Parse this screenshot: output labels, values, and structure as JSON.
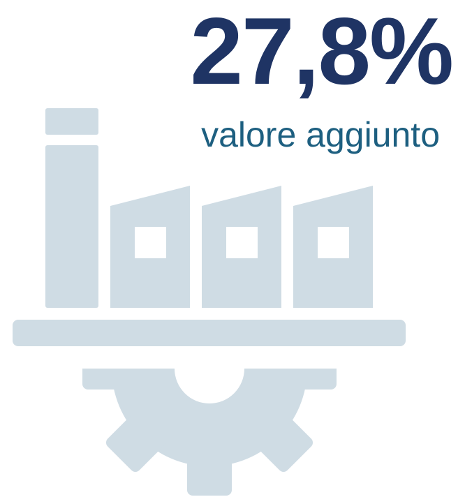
{
  "stat": {
    "value": "27,8%",
    "label": "valore aggiunto"
  }
}
